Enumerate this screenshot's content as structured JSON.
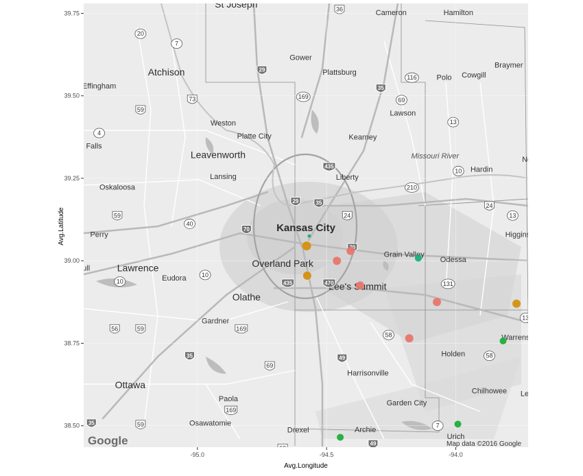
{
  "axes": {
    "xlabel": "Avg.Longitude",
    "ylabel": "Avg.Latitude",
    "xlim": [
      -95.44,
      -93.72
    ],
    "ylim": [
      38.435,
      39.78
    ],
    "xticks": [
      {
        "value": -95.0,
        "label": "-95.0"
      },
      {
        "value": -94.5,
        "label": "-94.5"
      },
      {
        "value": -94.0,
        "label": "-94.0"
      }
    ],
    "yticks": [
      {
        "value": 39.75,
        "label": "39.75"
      },
      {
        "value": 39.5,
        "label": "39.50"
      },
      {
        "value": 39.25,
        "label": "39.25"
      },
      {
        "value": 39.0,
        "label": "39.00"
      },
      {
        "value": 38.75,
        "label": "38.75"
      },
      {
        "value": 38.5,
        "label": "38.50"
      }
    ]
  },
  "chart_data": {
    "type": "scatter",
    "basemap": "roadmap-greyscale",
    "grid": true,
    "legend": "none",
    "colors": {
      "red": "#e8766d",
      "orange": "#d4900f",
      "green": "#1fae3a",
      "teal": "#15b07a"
    },
    "points": [
      {
        "lon": -94.577,
        "lat": 39.045,
        "color": "orange",
        "size": "large"
      },
      {
        "lon": -94.575,
        "lat": 38.955,
        "color": "orange",
        "size": "medium"
      },
      {
        "lon": -94.567,
        "lat": 39.075,
        "color": "teal",
        "size": "tiny"
      },
      {
        "lon": -94.46,
        "lat": 39.0,
        "color": "red",
        "size": "medium"
      },
      {
        "lon": -94.407,
        "lat": 39.03,
        "color": "red",
        "size": "medium"
      },
      {
        "lon": -94.37,
        "lat": 38.925,
        "color": "red",
        "size": "medium"
      },
      {
        "lon": -94.18,
        "lat": 38.765,
        "color": "red",
        "size": "medium"
      },
      {
        "lon": -94.073,
        "lat": 38.875,
        "color": "red",
        "size": "medium"
      },
      {
        "lon": -93.765,
        "lat": 38.87,
        "color": "orange",
        "size": "medium"
      },
      {
        "lon": -94.145,
        "lat": 39.008,
        "color": "teal",
        "size": "small"
      },
      {
        "lon": -93.817,
        "lat": 38.757,
        "color": "green",
        "size": "small"
      },
      {
        "lon": -93.992,
        "lat": 38.505,
        "color": "green",
        "size": "small"
      },
      {
        "lon": -94.447,
        "lat": 38.465,
        "color": "green",
        "size": "small"
      }
    ]
  },
  "map": {
    "places": [
      {
        "id": "st-joseph",
        "name": "St Joseph",
        "lon": -94.85,
        "lat": 39.768,
        "cls": "place-mid"
      },
      {
        "id": "cameron",
        "name": "Cameron",
        "lon": -94.25,
        "lat": 39.745,
        "cls": "place"
      },
      {
        "id": "hamilton",
        "name": "Hamilton",
        "lon": -93.99,
        "lat": 39.745,
        "cls": "place"
      },
      {
        "id": "gower",
        "name": "Gower",
        "lon": -94.6,
        "lat": 39.608,
        "cls": "place"
      },
      {
        "id": "plattsburg",
        "name": "Plattsburg",
        "lon": -94.45,
        "lat": 39.564,
        "cls": "place"
      },
      {
        "id": "atchison",
        "name": "Atchison",
        "lon": -95.12,
        "lat": 39.562,
        "cls": "place-mid"
      },
      {
        "id": "braymer",
        "name": "Braymer",
        "lon": -93.795,
        "lat": 39.586,
        "cls": "place"
      },
      {
        "id": "polo",
        "name": "Polo",
        "lon": -94.045,
        "lat": 39.548,
        "cls": "place"
      },
      {
        "id": "cowgill",
        "name": "Cowgill",
        "lon": -93.93,
        "lat": 39.555,
        "cls": "place"
      },
      {
        "id": "effingham",
        "name": "Effingham",
        "lon": -95.38,
        "lat": 39.522,
        "cls": "place"
      },
      {
        "id": "lawson",
        "name": "Lawson",
        "lon": -94.205,
        "lat": 39.44,
        "cls": "place"
      },
      {
        "id": "weston",
        "name": "Weston",
        "lon": -94.9,
        "lat": 39.41,
        "cls": "place"
      },
      {
        "id": "platte-city",
        "name": "Platte City",
        "lon": -94.78,
        "lat": 39.37,
        "cls": "place"
      },
      {
        "id": "kearney",
        "name": "Kearney",
        "lon": -94.36,
        "lat": 39.367,
        "cls": "place"
      },
      {
        "id": "falls",
        "name": "Falls",
        "lon": -95.4,
        "lat": 39.34,
        "cls": "place"
      },
      {
        "id": "leavenworth",
        "name": "Leavenworth",
        "lon": -94.92,
        "lat": 39.311,
        "cls": "place-mid"
      },
      {
        "id": "missouri-river",
        "name": "Missouri River",
        "lon": -94.08,
        "lat": 39.31,
        "cls": "river"
      },
      {
        "id": "lansing",
        "name": "Lansing",
        "lon": -94.9,
        "lat": 39.248,
        "cls": "place"
      },
      {
        "id": "liberty",
        "name": "Liberty",
        "lon": -94.42,
        "lat": 39.246,
        "cls": "place"
      },
      {
        "id": "hardin",
        "name": "Hardin",
        "lon": -93.9,
        "lat": 39.27,
        "cls": "place"
      },
      {
        "id": "oskaloosa",
        "name": "Oskaloosa",
        "lon": -95.31,
        "lat": 39.216,
        "cls": "place"
      },
      {
        "id": "kansas-city",
        "name": "Kansas City",
        "lon": -94.58,
        "lat": 39.09,
        "cls": "place-big"
      },
      {
        "id": "perry",
        "name": "Perry",
        "lon": -95.38,
        "lat": 39.072,
        "cls": "place"
      },
      {
        "id": "higgins",
        "name": "Higgins",
        "lon": -93.76,
        "lat": 39.072,
        "cls": "place"
      },
      {
        "id": "grain-valley",
        "name": "Grain Valley",
        "lon": -94.2,
        "lat": 39.012,
        "cls": "place"
      },
      {
        "id": "odessa",
        "name": "Odessa",
        "lon": -94.01,
        "lat": 38.996,
        "cls": "place"
      },
      {
        "id": "overland-park",
        "name": "Overland Park",
        "lon": -94.67,
        "lat": 38.982,
        "cls": "place-mid"
      },
      {
        "id": "lawrence",
        "name": "Lawrence",
        "lon": -95.23,
        "lat": 38.968,
        "cls": "place-mid"
      },
      {
        "id": "eudora",
        "name": "Eudora",
        "lon": -95.09,
        "lat": 38.94,
        "cls": "place"
      },
      {
        "id": "lees-summit",
        "name": "Lee's Summit",
        "lon": -94.38,
        "lat": 38.912,
        "cls": "place-mid"
      },
      {
        "id": "olathe",
        "name": "Olathe",
        "lon": -94.81,
        "lat": 38.88,
        "cls": "place-mid"
      },
      {
        "id": "gardner",
        "name": "Gardner",
        "lon": -94.93,
        "lat": 38.81,
        "cls": "place"
      },
      {
        "id": "warrensb",
        "name": "Warrensb",
        "lon": -93.76,
        "lat": 38.76,
        "cls": "place"
      },
      {
        "id": "holden",
        "name": "Holden",
        "lon": -94.01,
        "lat": 38.71,
        "cls": "place"
      },
      {
        "id": "harrisonville",
        "name": "Harrisonville",
        "lon": -94.34,
        "lat": 38.652,
        "cls": "place"
      },
      {
        "id": "ottawa",
        "name": "Ottawa",
        "lon": -95.26,
        "lat": 38.614,
        "cls": "place-mid"
      },
      {
        "id": "chilhowee",
        "name": "Chilhowee",
        "lon": -93.87,
        "lat": 38.598,
        "cls": "place"
      },
      {
        "id": "paola",
        "name": "Paola",
        "lon": -94.88,
        "lat": 38.574,
        "cls": "place"
      },
      {
        "id": "garden-city",
        "name": "Garden City",
        "lon": -94.19,
        "lat": 38.562,
        "cls": "place"
      },
      {
        "id": "osawatomie",
        "name": "Osawatomie",
        "lon": -94.95,
        "lat": 38.5,
        "cls": "place"
      },
      {
        "id": "drexel",
        "name": "Drexel",
        "lon": -94.61,
        "lat": 38.48,
        "cls": "place"
      },
      {
        "id": "archie",
        "name": "Archie",
        "lon": -94.35,
        "lat": 38.481,
        "cls": "place"
      },
      {
        "id": "urich",
        "name": "Urich",
        "lon": -94.0,
        "lat": 38.46,
        "cls": "place"
      },
      {
        "id": "no",
        "name": "No",
        "lon": -93.725,
        "lat": 39.3,
        "cls": "place"
      },
      {
        "id": "lee",
        "name": "Lee",
        "lon": -93.725,
        "lat": 38.59,
        "cls": "place"
      },
      {
        "id": "ull",
        "name": "ull",
        "lon": -95.43,
        "lat": 38.97,
        "cls": "place"
      }
    ],
    "shields": [
      {
        "id": "us-36",
        "label": "36",
        "kind": "us",
        "lon": -94.45,
        "lat": 39.76
      },
      {
        "id": "r-20",
        "label": "20",
        "kind": "state",
        "lon": -95.22,
        "lat": 39.686
      },
      {
        "id": "r-7",
        "label": "7",
        "kind": "state",
        "lon": -95.08,
        "lat": 39.656
      },
      {
        "id": "i-29",
        "label": "29",
        "kind": "interstate",
        "lon": -94.75,
        "lat": 39.578
      },
      {
        "id": "r-116",
        "label": "116",
        "kind": "state",
        "lon": -94.17,
        "lat": 39.553
      },
      {
        "id": "i-35-n",
        "label": "35",
        "kind": "interstate",
        "lon": -94.29,
        "lat": 39.523
      },
      {
        "id": "r-169-n",
        "label": "169",
        "kind": "state",
        "lon": -94.59,
        "lat": 39.495
      },
      {
        "id": "us-73",
        "label": "73",
        "kind": "us",
        "lon": -95.02,
        "lat": 39.488
      },
      {
        "id": "r-69",
        "label": "69",
        "kind": "state",
        "lon": -94.21,
        "lat": 39.485
      },
      {
        "id": "us-59-n",
        "label": "59",
        "kind": "us",
        "lon": -95.22,
        "lat": 39.456
      },
      {
        "id": "r-13-n",
        "label": "13",
        "kind": "state",
        "lon": -94.01,
        "lat": 39.418
      },
      {
        "id": "r-4",
        "label": "4",
        "kind": "state",
        "lon": -95.38,
        "lat": 39.385
      },
      {
        "id": "i-435-n",
        "label": "435",
        "kind": "interstate",
        "lon": -94.49,
        "lat": 39.285
      },
      {
        "id": "r-10-ne",
        "label": "10",
        "kind": "state",
        "lon": -93.99,
        "lat": 39.27
      },
      {
        "id": "r-210",
        "label": "210",
        "kind": "state",
        "lon": -94.17,
        "lat": 39.22
      },
      {
        "id": "i-29-kc",
        "label": "29",
        "kind": "interstate",
        "lon": -94.62,
        "lat": 39.18
      },
      {
        "id": "i-35-kc",
        "label": "35",
        "kind": "interstate",
        "lon": -94.53,
        "lat": 39.175
      },
      {
        "id": "us-59-w",
        "label": "59",
        "kind": "us",
        "lon": -95.31,
        "lat": 39.135
      },
      {
        "id": "us-24-e",
        "label": "24",
        "kind": "us",
        "lon": -94.42,
        "lat": 39.135
      },
      {
        "id": "us-24-ne",
        "label": "24",
        "kind": "us",
        "lon": -93.87,
        "lat": 39.165
      },
      {
        "id": "r-13-e",
        "label": "13",
        "kind": "state",
        "lon": -93.78,
        "lat": 39.135
      },
      {
        "id": "r-40",
        "label": "40",
        "kind": "state",
        "lon": -95.03,
        "lat": 39.11
      },
      {
        "id": "i-70-w",
        "label": "70",
        "kind": "interstate",
        "lon": -94.81,
        "lat": 39.095
      },
      {
        "id": "i-70-e",
        "label": "70",
        "kind": "interstate",
        "lon": -94.4,
        "lat": 39.04
      },
      {
        "id": "r-10-w",
        "label": "10",
        "kind": "state",
        "lon": -95.3,
        "lat": 38.935
      },
      {
        "id": "r-10-e",
        "label": "10",
        "kind": "state",
        "lon": -94.97,
        "lat": 38.955
      },
      {
        "id": "i-435-s",
        "label": "435",
        "kind": "interstate",
        "lon": -94.65,
        "lat": 38.932
      },
      {
        "id": "i-470",
        "label": "470",
        "kind": "interstate",
        "lon": -94.49,
        "lat": 38.932
      },
      {
        "id": "us-131",
        "label": "131",
        "kind": "state",
        "lon": -94.03,
        "lat": 38.928
      },
      {
        "id": "r-13-se",
        "label": "13",
        "kind": "state",
        "lon": -93.73,
        "lat": 38.825
      },
      {
        "id": "us-56",
        "label": "56",
        "kind": "us",
        "lon": -95.32,
        "lat": 38.792
      },
      {
        "id": "us-59-s",
        "label": "59",
        "kind": "us",
        "lon": -95.22,
        "lat": 38.792
      },
      {
        "id": "us-169-s",
        "label": "169",
        "kind": "us",
        "lon": -94.83,
        "lat": 38.792
      },
      {
        "id": "r-58-w",
        "label": "58",
        "kind": "state",
        "lon": -94.26,
        "lat": 38.773
      },
      {
        "id": "r-58-e",
        "label": "58",
        "kind": "state",
        "lon": -93.87,
        "lat": 38.71
      },
      {
        "id": "i-35-s",
        "label": "35",
        "kind": "interstate",
        "lon": -95.03,
        "lat": 38.712
      },
      {
        "id": "i-49",
        "label": "49",
        "kind": "interstate",
        "lon": -94.44,
        "lat": 38.705
      },
      {
        "id": "us-69-s",
        "label": "69",
        "kind": "us",
        "lon": -94.72,
        "lat": 38.68
      },
      {
        "id": "us-169-ss",
        "label": "169",
        "kind": "us",
        "lon": -94.87,
        "lat": 38.545
      },
      {
        "id": "us-59-ss",
        "label": "59",
        "kind": "us",
        "lon": -95.22,
        "lat": 38.502
      },
      {
        "id": "i-35-ss",
        "label": "35",
        "kind": "interstate",
        "lon": -95.41,
        "lat": 38.508
      },
      {
        "id": "r-7-s",
        "label": "7",
        "kind": "state",
        "lon": -94.07,
        "lat": 38.498
      },
      {
        "id": "i-49-s",
        "label": "49",
        "kind": "interstate",
        "lon": -94.32,
        "lat": 38.445
      },
      {
        "id": "us-69-ss",
        "label": "69",
        "kind": "us",
        "lon": -94.67,
        "lat": 38.43
      }
    ],
    "credit": "Map data ©2016 Google",
    "logo": "Google"
  }
}
